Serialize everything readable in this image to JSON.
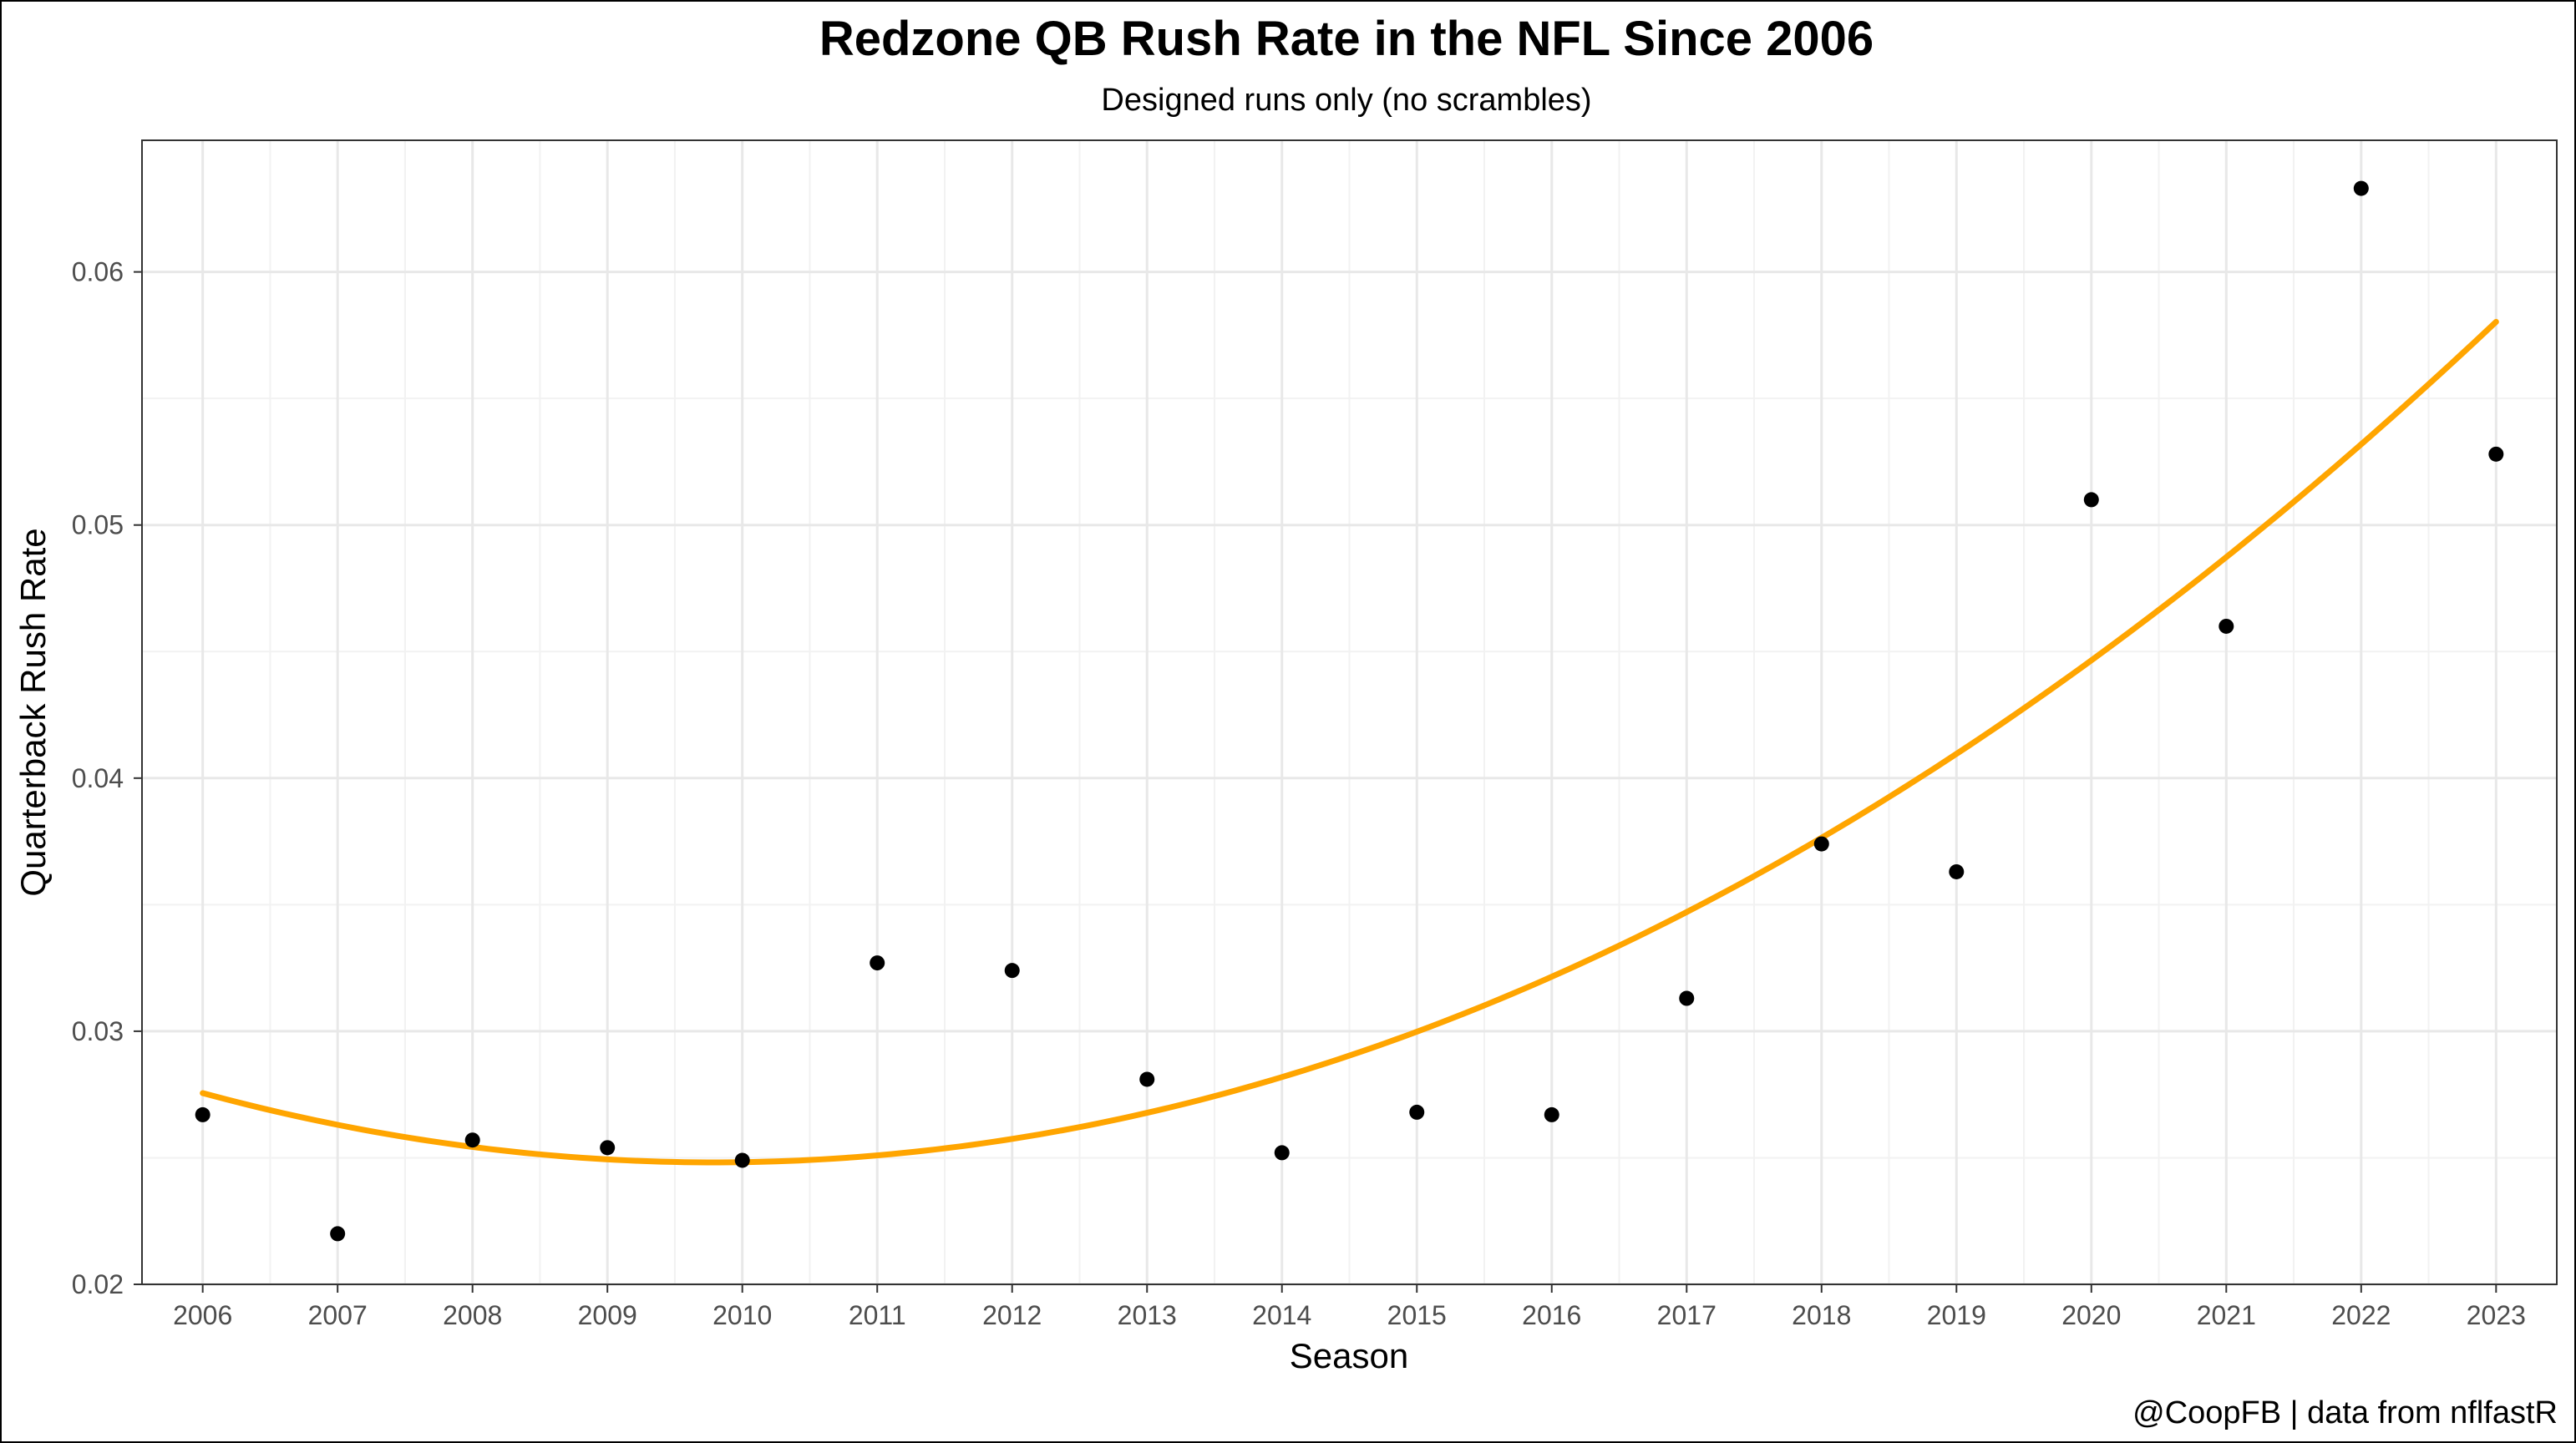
{
  "chart_data": {
    "type": "scatter",
    "title": "Redzone QB Rush Rate in the NFL Since 2006",
    "subtitle": "Designed runs only (no scrambles)",
    "xlabel": "Season",
    "ylabel": "Quarterback Rush Rate",
    "caption": "@CoopFB | data from nflfastR",
    "x": [
      2006,
      2007,
      2008,
      2009,
      2010,
      2011,
      2012,
      2013,
      2014,
      2015,
      2016,
      2017,
      2018,
      2019,
      2020,
      2021,
      2022,
      2023
    ],
    "y": [
      0.0267,
      0.022,
      0.0257,
      0.0254,
      0.0249,
      0.0327,
      0.0324,
      0.0281,
      0.0252,
      0.0268,
      0.0267,
      0.0313,
      0.0374,
      0.0363,
      0.051,
      0.046,
      0.0633,
      0.0528
    ],
    "trend": {
      "type": "quadratic",
      "color": "#FFA500",
      "x": [
        2006,
        2007,
        2008,
        2009,
        2010,
        2011,
        2012,
        2013,
        2014,
        2015,
        2016,
        2017,
        2018,
        2019,
        2020,
        2021,
        2022,
        2023
      ],
      "y": [
        0.0275,
        0.0263,
        0.0255,
        0.025,
        0.0248,
        0.0251,
        0.0257,
        0.0268,
        0.0282,
        0.0299,
        0.0321,
        0.0347,
        0.0377,
        0.041,
        0.0447,
        0.0487,
        0.0532,
        0.058
      ]
    },
    "xlim": [
      2005.55,
      2023.45
    ],
    "ylim": [
      0.02,
      0.0652
    ],
    "x_ticks": [
      2006,
      2007,
      2008,
      2009,
      2010,
      2011,
      2012,
      2013,
      2014,
      2015,
      2016,
      2017,
      2018,
      2019,
      2020,
      2021,
      2022,
      2023
    ],
    "x_tick_labels": [
      "2006",
      "2007",
      "2008",
      "2009",
      "2010",
      "2011",
      "2012",
      "2013",
      "2014",
      "2015",
      "2016",
      "2017",
      "2018",
      "2019",
      "2020",
      "2021",
      "2022",
      "2023"
    ],
    "y_ticks": [
      0.02,
      0.03,
      0.04,
      0.05,
      0.06
    ],
    "y_tick_labels": [
      "0.02",
      "0.03",
      "0.04",
      "0.05",
      "0.06"
    ],
    "grid": true,
    "point_color": "#000000"
  }
}
